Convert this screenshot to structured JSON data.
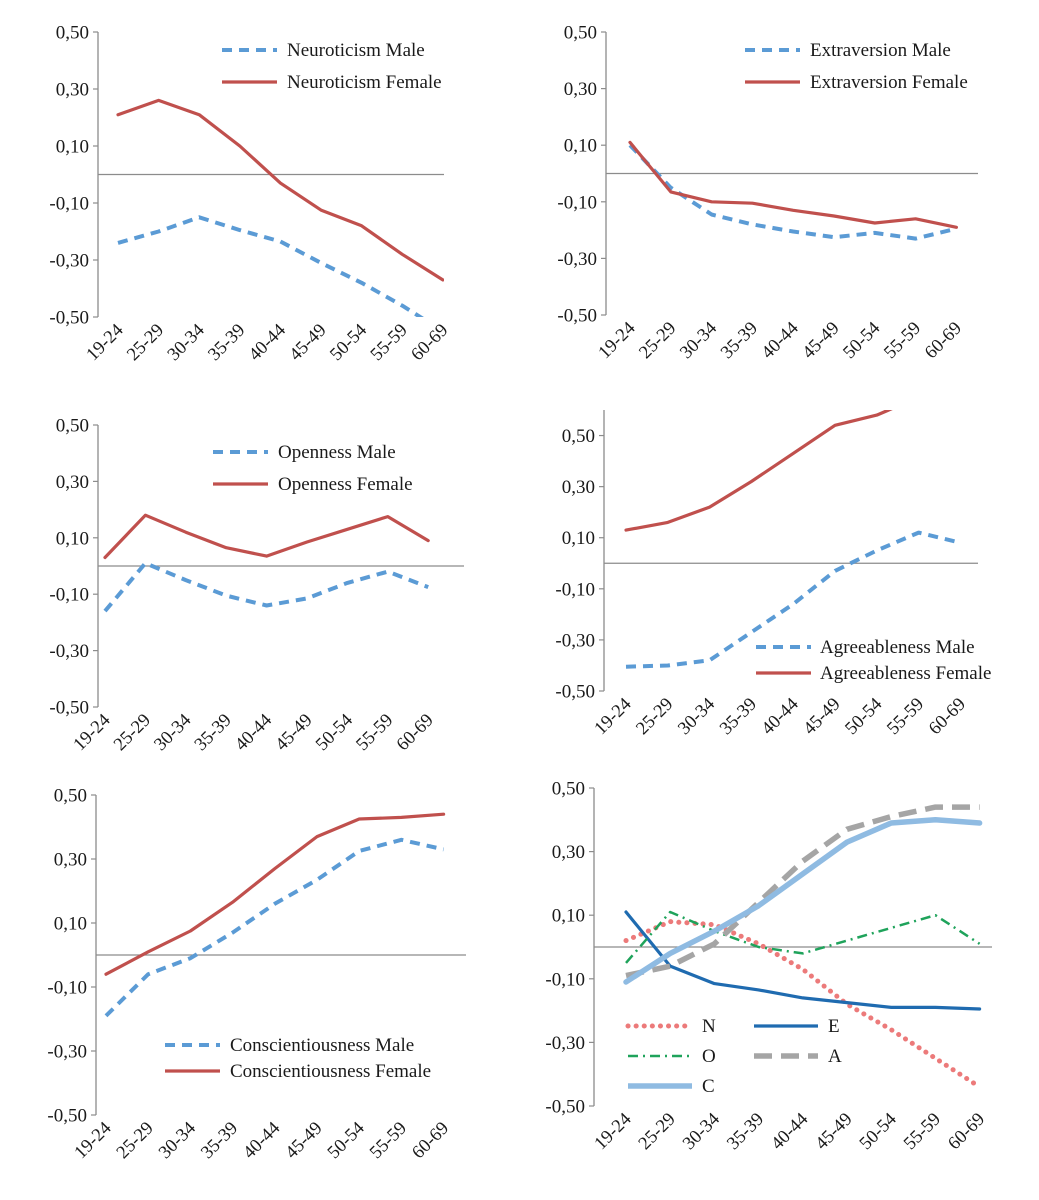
{
  "chart_data": [
    {
      "type": "line",
      "categories": [
        "19-24",
        "25-29",
        "30-34",
        "35-39",
        "40-44",
        "45-49",
        "50-54",
        "55-59",
        "60-69"
      ],
      "ylim": [
        -0.5,
        0.5
      ],
      "yticks": [
        "0,50",
        "0,30",
        "0,10",
        "-0,10",
        "-0,30",
        "-0,50"
      ],
      "grid": false,
      "legend_position": "top-right",
      "series": [
        {
          "name": "Neuroticism Male",
          "color": "#5b9bd5",
          "dash": "dashed",
          "values": [
            -0.24,
            -0.2,
            -0.15,
            -0.195,
            -0.235,
            -0.31,
            -0.38,
            -0.46,
            -0.55
          ]
        },
        {
          "name": "Neuroticism Female",
          "color": "#c0504d",
          "dash": "solid",
          "values": [
            0.21,
            0.26,
            0.21,
            0.1,
            -0.03,
            -0.125,
            -0.18,
            -0.28,
            -0.37
          ]
        }
      ]
    },
    {
      "type": "line",
      "categories": [
        "19-24",
        "25-29",
        "30-34",
        "35-39",
        "40-44",
        "45-49",
        "50-54",
        "55-59",
        "60-69"
      ],
      "ylim": [
        -0.5,
        0.5
      ],
      "yticks": [
        "0,50",
        "0,30",
        "0,10",
        "-0,10",
        "-0,30",
        "-0,50"
      ],
      "grid": false,
      "legend_position": "top-right",
      "series": [
        {
          "name": "Extraversion Male",
          "color": "#5b9bd5",
          "dash": "dashed",
          "values": [
            0.1,
            -0.05,
            -0.145,
            -0.18,
            -0.205,
            -0.225,
            -0.21,
            -0.23,
            -0.195
          ]
        },
        {
          "name": "Extraversion Female",
          "color": "#c0504d",
          "dash": "solid",
          "values": [
            0.11,
            -0.065,
            -0.1,
            -0.105,
            -0.13,
            -0.15,
            -0.175,
            -0.16,
            -0.19
          ]
        }
      ]
    },
    {
      "type": "line",
      "categories": [
        "19-24",
        "25-29",
        "30-34",
        "35-39",
        "40-44",
        "45-49",
        "50-54",
        "55-59",
        "60-69"
      ],
      "ylim": [
        -0.5,
        0.5
      ],
      "yticks": [
        "0,50",
        "0,30",
        "0,10",
        "-0,10",
        "-0,30",
        "-0,50"
      ],
      "grid": false,
      "legend_position": "top-right",
      "series": [
        {
          "name": "Openness Male",
          "color": "#5b9bd5",
          "dash": "dashed",
          "values": [
            -0.16,
            0.01,
            -0.05,
            -0.105,
            -0.14,
            -0.115,
            -0.06,
            -0.02,
            -0.075
          ]
        },
        {
          "name": "Openness Female",
          "color": "#c0504d",
          "dash": "solid",
          "values": [
            0.03,
            0.18,
            0.12,
            0.065,
            0.035,
            0.085,
            0.13,
            0.175,
            0.09
          ]
        }
      ]
    },
    {
      "type": "line",
      "categories": [
        "19-24",
        "25-29",
        "30-34",
        "35-39",
        "40-44",
        "45-49",
        "50-54",
        "55-59",
        "60-69"
      ],
      "ylim": [
        -0.5,
        0.6
      ],
      "yticks": [
        "0,50",
        "0,30",
        "0,10",
        "-0,10",
        "-0,30",
        "-0,50"
      ],
      "grid": false,
      "legend_position": "bottom-right",
      "series": [
        {
          "name": "Agreeableness Male",
          "color": "#5b9bd5",
          "dash": "dashed",
          "values": [
            -0.405,
            -0.4,
            -0.38,
            -0.27,
            -0.16,
            -0.03,
            0.05,
            0.12,
            0.08
          ]
        },
        {
          "name": "Agreeableness Female",
          "color": "#c0504d",
          "dash": "solid",
          "values": [
            0.13,
            0.16,
            0.22,
            0.32,
            0.43,
            0.54,
            0.58,
            0.65,
            0.64
          ]
        }
      ]
    },
    {
      "type": "line",
      "categories": [
        "19-24",
        "25-29",
        "30-34",
        "35-39",
        "40-44",
        "45-49",
        "50-54",
        "55-59",
        "60-69"
      ],
      "ylim": [
        -0.5,
        0.5
      ],
      "yticks": [
        "0,50",
        "0,30",
        "0,10",
        "-0,10",
        "-0,30",
        "-0,50"
      ],
      "grid": false,
      "legend_position": "bottom-right",
      "series": [
        {
          "name": "Conscientiousness Male",
          "color": "#5b9bd5",
          "dash": "dashed",
          "values": [
            -0.19,
            -0.06,
            -0.01,
            0.07,
            0.16,
            0.235,
            0.325,
            0.36,
            0.33
          ]
        },
        {
          "name": "Conscientiousness Female",
          "color": "#c0504d",
          "dash": "solid",
          "values": [
            -0.06,
            0.01,
            0.075,
            0.165,
            0.27,
            0.37,
            0.425,
            0.43,
            0.44
          ]
        }
      ]
    },
    {
      "type": "line",
      "categories": [
        "19-24",
        "25-29",
        "30-34",
        "35-39",
        "40-44",
        "45-49",
        "50-54",
        "55-59",
        "60-69"
      ],
      "ylim": [
        -0.5,
        0.5
      ],
      "yticks": [
        "0,50",
        "0,30",
        "0,10",
        "-0,10",
        "-0,30",
        "-0,50"
      ],
      "grid": false,
      "legend_position": "bottom-left",
      "series": [
        {
          "name": "N",
          "color": "#ec7a7a",
          "dash": "dotted",
          "values": [
            0.02,
            0.08,
            0.07,
            0.01,
            -0.07,
            -0.18,
            -0.26,
            -0.35,
            -0.44
          ]
        },
        {
          "name": "E",
          "color": "#1f6bb0",
          "dash": "solid",
          "values": [
            0.11,
            -0.06,
            -0.115,
            -0.135,
            -0.16,
            -0.175,
            -0.19,
            -0.19,
            -0.195
          ]
        },
        {
          "name": "O",
          "color": "#1fa35b",
          "dash": "dashdot",
          "values": [
            -0.05,
            0.11,
            0.05,
            0.0,
            -0.02,
            0.02,
            0.06,
            0.1,
            0.01
          ]
        },
        {
          "name": "A",
          "color": "#a5a5a5",
          "dash": "longdash",
          "values": [
            -0.09,
            -0.06,
            0.01,
            0.14,
            0.27,
            0.37,
            0.41,
            0.44,
            0.44
          ]
        },
        {
          "name": "C",
          "color": "#8fbbe2",
          "dash": "thick",
          "values": [
            -0.11,
            -0.02,
            0.05,
            0.13,
            0.23,
            0.33,
            0.39,
            0.4,
            0.39
          ]
        }
      ]
    }
  ]
}
